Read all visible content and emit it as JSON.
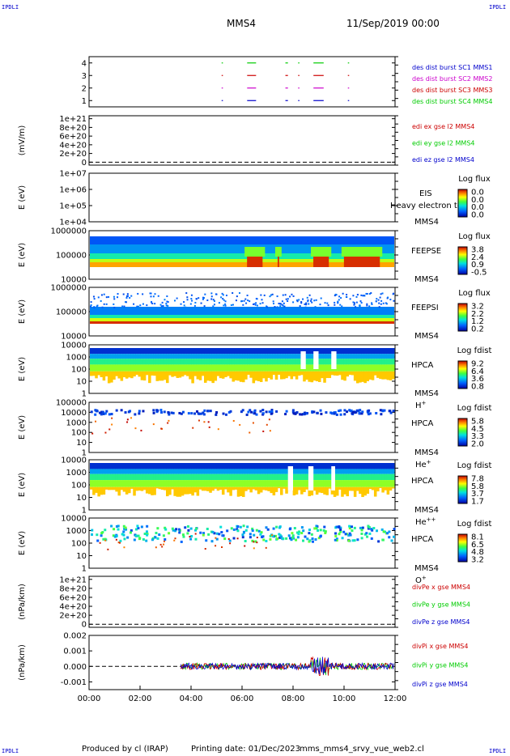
{
  "header": {
    "corner_left_top": "IPDLI",
    "corner_right_top": "IPDLI",
    "corner_left_bottom": "IPDLI",
    "corner_right_bottom": "IPDLI",
    "spacecraft": "MMS4",
    "datetime": "11/Sep/2019 00:00"
  },
  "footer": {
    "produced_by": "Produced by cl (IRAP)",
    "printing_date": "Printing date: 01/Dec/2023",
    "script_name": "mms_mms4_srvy_vue_web2.cl"
  },
  "colors": {
    "blue": "#0000cc",
    "magenta": "#cc00cc",
    "red": "#cc0000",
    "green": "#00cc00"
  },
  "chart_data": [
    {
      "type": "line",
      "id": "burst",
      "ylabel": "",
      "yticks": [
        "1",
        "2",
        "3",
        "4"
      ],
      "ylim": [
        0.5,
        4.5
      ],
      "legend": [
        {
          "text": "des dist burst SC1 MMS1",
          "color": "#0000cc"
        },
        {
          "text": "des dist burst SC2 MMS2",
          "color": "#cc00cc"
        },
        {
          "text": "des dist burst SC3 MMS3",
          "color": "#cc0000"
        },
        {
          "text": "des dist burst SC4 MMS4",
          "color": "#00cc00"
        }
      ],
      "intervals_hours": [
        [
          5.2,
          5.25
        ],
        [
          6.2,
          6.55
        ],
        [
          7.7,
          7.8
        ],
        [
          8.2,
          8.25
        ],
        [
          8.8,
          9.2
        ],
        [
          10.15,
          10.2
        ]
      ]
    },
    {
      "type": "line",
      "id": "edi",
      "ylabel": "(mV/m)",
      "yticks": [
        "0",
        "2e+20",
        "4e+20",
        "6e+20",
        "8e+20",
        "1e+21"
      ],
      "ylim": [
        0,
        1e+21
      ],
      "legend": [
        {
          "text": "edi ex gse l2 MMS4",
          "color": "#cc0000"
        },
        {
          "text": "edi ey gse l2 MMS4",
          "color": "#00cc00"
        },
        {
          "text": "edi ez gse l2 MMS4",
          "color": "#0000cc"
        }
      ]
    },
    {
      "type": "heatmap",
      "id": "eis",
      "ylabel": "E (eV)",
      "yticks": [
        "1e+04",
        "1e+05",
        "1e+06",
        "1e+07"
      ],
      "log": true,
      "instrument": "EIS",
      "label_top": "Heavy electron to",
      "label_bottom": "MMS4",
      "cbar_title": "Log flux",
      "cbar_ticks": [
        "0.0",
        "0.0",
        "0.0",
        "0.0"
      ]
    },
    {
      "type": "heatmap",
      "id": "feepse",
      "ylabel": "E (eV)",
      "yticks": [
        "10000",
        "100000",
        "1000000"
      ],
      "log": true,
      "instrument": "FEEPSE",
      "label_bottom": "MMS4",
      "cbar_title": "Log flux",
      "cbar_ticks": [
        "3.8",
        "2.4",
        "0.9",
        "-0.5"
      ]
    },
    {
      "type": "heatmap",
      "id": "feepsi",
      "ylabel": "E (eV)",
      "yticks": [
        "10000",
        "100000",
        "1000000"
      ],
      "log": true,
      "instrument": "FEEPSI",
      "label_bottom": "MMS4",
      "cbar_title": "Log flux",
      "cbar_ticks": [
        "3.2",
        "2.2",
        "1.2",
        "0.2"
      ]
    },
    {
      "type": "heatmap",
      "id": "hpca_h",
      "ylabel": "E (eV)",
      "yticks": [
        "1",
        "10",
        "100",
        "1000",
        "10000"
      ],
      "log": true,
      "instrument": "HPCA",
      "label_bottom": "MMS4",
      "species": "H",
      "species_sup": "+",
      "cbar_title": "Log fdist",
      "cbar_ticks": [
        "9.2",
        "6.4",
        "3.6",
        "0.8"
      ]
    },
    {
      "type": "heatmap",
      "id": "hpca_he",
      "ylabel": "E (eV)",
      "yticks": [
        "1",
        "10",
        "100",
        "1000",
        "10000",
        "100000"
      ],
      "log": true,
      "instrument": "HPCA",
      "label_bottom": "MMS4",
      "species": "He",
      "species_sup": "+",
      "cbar_title": "Log fdist",
      "cbar_ticks": [
        "5.8",
        "4.5",
        "3.3",
        "2.0"
      ]
    },
    {
      "type": "heatmap",
      "id": "hpca_hepp",
      "ylabel": "E (eV)",
      "yticks": [
        "1",
        "10",
        "100",
        "1000",
        "10000"
      ],
      "log": true,
      "instrument": "HPCA",
      "label_bottom": "MMS4",
      "species": "He",
      "species_sup": "++",
      "cbar_title": "Log fdist",
      "cbar_ticks": [
        "7.8",
        "5.8",
        "3.7",
        "1.7"
      ]
    },
    {
      "type": "heatmap",
      "id": "hpca_o",
      "ylabel": "E (eV)",
      "yticks": [
        "1",
        "10",
        "100",
        "1000",
        "10000"
      ],
      "log": true,
      "instrument": "HPCA",
      "label_bottom": "MMS4",
      "species": "O",
      "species_sup": "+",
      "cbar_title": "Log fdist",
      "cbar_ticks": [
        "8.1",
        "6.5",
        "4.8",
        "3.2"
      ]
    },
    {
      "type": "line",
      "id": "divpe",
      "ylabel": "(nPa/km)",
      "yticks": [
        "0",
        "2e+20",
        "4e+20",
        "6e+20",
        "8e+20",
        "1e+21"
      ],
      "ylim": [
        0,
        1e+21
      ],
      "legend": [
        {
          "text": "divPe x gse MMS4",
          "color": "#cc0000"
        },
        {
          "text": "divPe y gse MMS4",
          "color": "#00cc00"
        },
        {
          "text": "divPe z gse MMS4",
          "color": "#0000cc"
        }
      ]
    },
    {
      "type": "line",
      "id": "divpi",
      "ylabel": "(nPa/km)",
      "yticks": [
        "-0.001",
        "0.000",
        "0.001",
        "0.002"
      ],
      "ylim": [
        -0.0015,
        0.002
      ],
      "data_start_hour": 3.6,
      "legend": [
        {
          "text": "divPi x gse MMS4",
          "color": "#cc0000"
        },
        {
          "text": "divPi y gse MMS4",
          "color": "#00cc00"
        },
        {
          "text": "divPi z gse MMS4",
          "color": "#0000cc"
        }
      ]
    }
  ],
  "xaxis": {
    "range_hours": [
      0,
      12
    ],
    "tick_labels": [
      "00:00",
      "02:00",
      "04:00",
      "06:00",
      "08:00",
      "10:00",
      "12:00"
    ]
  }
}
